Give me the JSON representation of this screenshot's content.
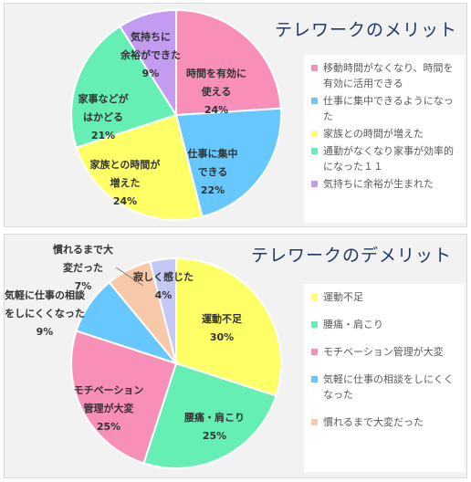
{
  "chart_data": [
    {
      "type": "pie",
      "title": "テレワークのメリット",
      "slices": [
        {
          "label": "時間を有効に\n使える",
          "value": 24,
          "display": "24%",
          "color": "#f78fb8"
        },
        {
          "label": "仕事に集中\nできる",
          "value": 22,
          "display": "22%",
          "color": "#66c8ff"
        },
        {
          "label": "家族との時間が\n増えた",
          "value": 24,
          "display": "24%",
          "color": "#ffff66"
        },
        {
          "label": "家事などが\nはかどる",
          "value": 21,
          "display": "21%",
          "color": "#66efb4"
        },
        {
          "label": "気持ちに\n余裕ができた",
          "value": 9,
          "display": "9%",
          "color": "#c39bf0"
        }
      ],
      "legend": [
        {
          "text": "移動時間がなくなり、時間を有効に活用できる",
          "color": "#f78fb8"
        },
        {
          "text": "仕事に集中できるようになった",
          "color": "#66c8ff"
        },
        {
          "text": "家族との時間が増えた",
          "color": "#ffff66"
        },
        {
          "text": "通勤がなくなり家事が効率的になった１１",
          "color": "#66efb4"
        },
        {
          "text": "気持ちに余裕が生まれた",
          "color": "#c39bf0"
        }
      ],
      "legend_position": "right"
    },
    {
      "type": "pie",
      "title": "テレワークのデメリット",
      "slices": [
        {
          "label": "運動不足",
          "value": 30,
          "display": "30%",
          "color": "#ffff66"
        },
        {
          "label": "腰痛・肩こり",
          "value": 25,
          "display": "25%",
          "color": "#66efb4"
        },
        {
          "label": "モチベーション\n管理が大変",
          "value": 25,
          "display": "25%",
          "color": "#f78fb8"
        },
        {
          "label": "気軽に仕事の相談\nをしにくくなった",
          "value": 9,
          "display": "9%",
          "color": "#66c8ff"
        },
        {
          "label": "慣れるまで大\n変だった",
          "value": 7,
          "display": "7%",
          "color": "#f8c9a8"
        },
        {
          "label": "寂しく感じた",
          "value": 4,
          "display": "4%",
          "color": "#c4c8f5"
        }
      ],
      "legend": [
        {
          "text": "運動不足",
          "color": "#ffff66"
        },
        {
          "text": "腰痛・肩こり",
          "color": "#66efb4"
        },
        {
          "text": "モチベーション管理が大変",
          "color": "#f78fb8"
        },
        {
          "text": "気軽に仕事の相談をしにくくなった",
          "color": "#66c8ff"
        },
        {
          "text": "慣れるまで大変だった",
          "color": "#f8c9a8"
        }
      ],
      "legend_position": "right"
    }
  ]
}
